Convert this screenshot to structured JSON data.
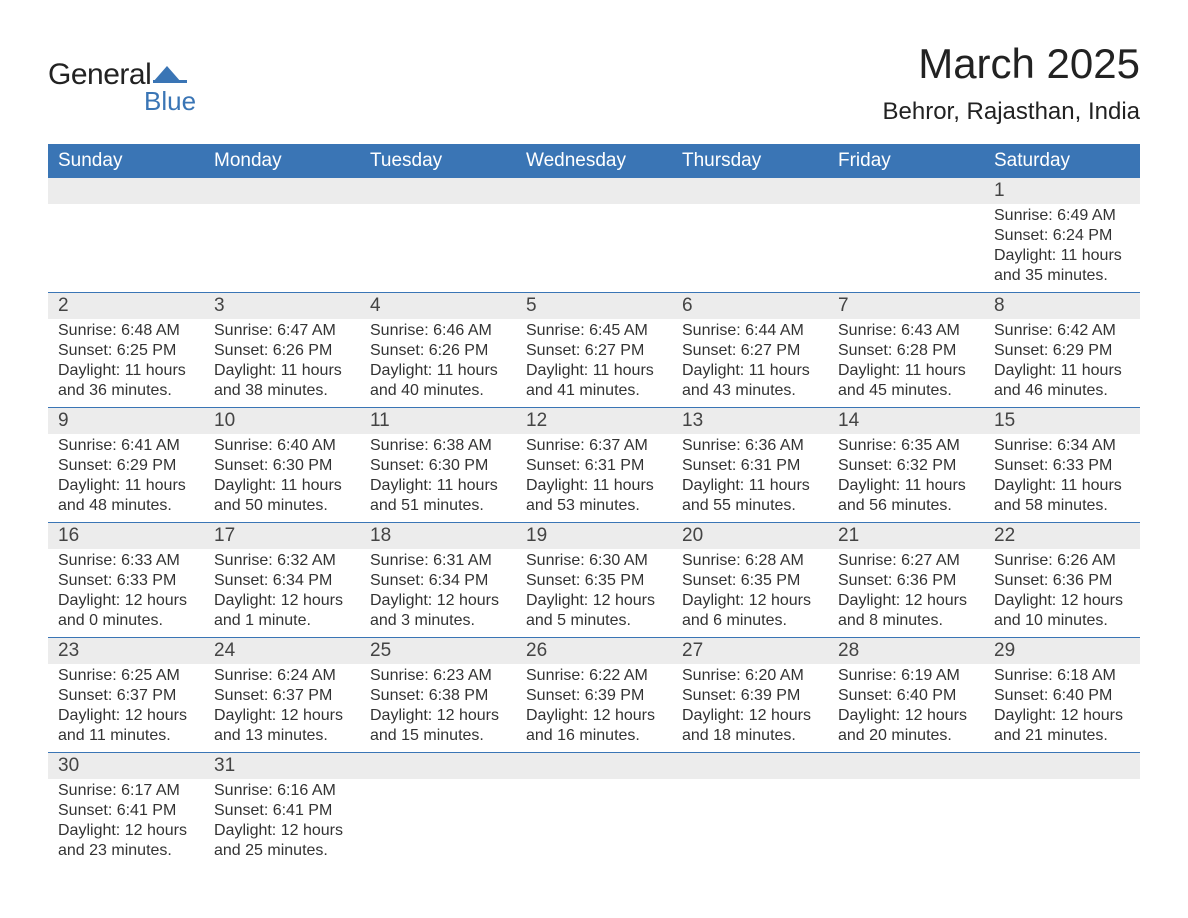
{
  "logo": {
    "word1": "General",
    "word2": "Blue",
    "icon_color": "#3a75b5"
  },
  "header": {
    "title": "March 2025",
    "location": "Behror, Rajasthan, India"
  },
  "calendar": {
    "header_bg": "#3a75b5",
    "header_fg": "#ffffff",
    "daynum_bg": "#ececec",
    "grid_line": "#3a75b5",
    "text_color": "#333333",
    "columns": [
      "Sunday",
      "Monday",
      "Tuesday",
      "Wednesday",
      "Thursday",
      "Friday",
      "Saturday"
    ],
    "weeks": [
      [
        null,
        null,
        null,
        null,
        null,
        null,
        {
          "d": "1",
          "sr": "6:49 AM",
          "ss": "6:24 PM",
          "dl": "11 hours and 35 minutes."
        }
      ],
      [
        {
          "d": "2",
          "sr": "6:48 AM",
          "ss": "6:25 PM",
          "dl": "11 hours and 36 minutes."
        },
        {
          "d": "3",
          "sr": "6:47 AM",
          "ss": "6:26 PM",
          "dl": "11 hours and 38 minutes."
        },
        {
          "d": "4",
          "sr": "6:46 AM",
          "ss": "6:26 PM",
          "dl": "11 hours and 40 minutes."
        },
        {
          "d": "5",
          "sr": "6:45 AM",
          "ss": "6:27 PM",
          "dl": "11 hours and 41 minutes."
        },
        {
          "d": "6",
          "sr": "6:44 AM",
          "ss": "6:27 PM",
          "dl": "11 hours and 43 minutes."
        },
        {
          "d": "7",
          "sr": "6:43 AM",
          "ss": "6:28 PM",
          "dl": "11 hours and 45 minutes."
        },
        {
          "d": "8",
          "sr": "6:42 AM",
          "ss": "6:29 PM",
          "dl": "11 hours and 46 minutes."
        }
      ],
      [
        {
          "d": "9",
          "sr": "6:41 AM",
          "ss": "6:29 PM",
          "dl": "11 hours and 48 minutes."
        },
        {
          "d": "10",
          "sr": "6:40 AM",
          "ss": "6:30 PM",
          "dl": "11 hours and 50 minutes."
        },
        {
          "d": "11",
          "sr": "6:38 AM",
          "ss": "6:30 PM",
          "dl": "11 hours and 51 minutes."
        },
        {
          "d": "12",
          "sr": "6:37 AM",
          "ss": "6:31 PM",
          "dl": "11 hours and 53 minutes."
        },
        {
          "d": "13",
          "sr": "6:36 AM",
          "ss": "6:31 PM",
          "dl": "11 hours and 55 minutes."
        },
        {
          "d": "14",
          "sr": "6:35 AM",
          "ss": "6:32 PM",
          "dl": "11 hours and 56 minutes."
        },
        {
          "d": "15",
          "sr": "6:34 AM",
          "ss": "6:33 PM",
          "dl": "11 hours and 58 minutes."
        }
      ],
      [
        {
          "d": "16",
          "sr": "6:33 AM",
          "ss": "6:33 PM",
          "dl": "12 hours and 0 minutes."
        },
        {
          "d": "17",
          "sr": "6:32 AM",
          "ss": "6:34 PM",
          "dl": "12 hours and 1 minute."
        },
        {
          "d": "18",
          "sr": "6:31 AM",
          "ss": "6:34 PM",
          "dl": "12 hours and 3 minutes."
        },
        {
          "d": "19",
          "sr": "6:30 AM",
          "ss": "6:35 PM",
          "dl": "12 hours and 5 minutes."
        },
        {
          "d": "20",
          "sr": "6:28 AM",
          "ss": "6:35 PM",
          "dl": "12 hours and 6 minutes."
        },
        {
          "d": "21",
          "sr": "6:27 AM",
          "ss": "6:36 PM",
          "dl": "12 hours and 8 minutes."
        },
        {
          "d": "22",
          "sr": "6:26 AM",
          "ss": "6:36 PM",
          "dl": "12 hours and 10 minutes."
        }
      ],
      [
        {
          "d": "23",
          "sr": "6:25 AM",
          "ss": "6:37 PM",
          "dl": "12 hours and 11 minutes."
        },
        {
          "d": "24",
          "sr": "6:24 AM",
          "ss": "6:37 PM",
          "dl": "12 hours and 13 minutes."
        },
        {
          "d": "25",
          "sr": "6:23 AM",
          "ss": "6:38 PM",
          "dl": "12 hours and 15 minutes."
        },
        {
          "d": "26",
          "sr": "6:22 AM",
          "ss": "6:39 PM",
          "dl": "12 hours and 16 minutes."
        },
        {
          "d": "27",
          "sr": "6:20 AM",
          "ss": "6:39 PM",
          "dl": "12 hours and 18 minutes."
        },
        {
          "d": "28",
          "sr": "6:19 AM",
          "ss": "6:40 PM",
          "dl": "12 hours and 20 minutes."
        },
        {
          "d": "29",
          "sr": "6:18 AM",
          "ss": "6:40 PM",
          "dl": "12 hours and 21 minutes."
        }
      ],
      [
        {
          "d": "30",
          "sr": "6:17 AM",
          "ss": "6:41 PM",
          "dl": "12 hours and 23 minutes."
        },
        {
          "d": "31",
          "sr": "6:16 AM",
          "ss": "6:41 PM",
          "dl": "12 hours and 25 minutes."
        },
        null,
        null,
        null,
        null,
        null
      ]
    ],
    "labels": {
      "sunrise": "Sunrise:",
      "sunset": "Sunset:",
      "daylight": "Daylight:"
    }
  }
}
